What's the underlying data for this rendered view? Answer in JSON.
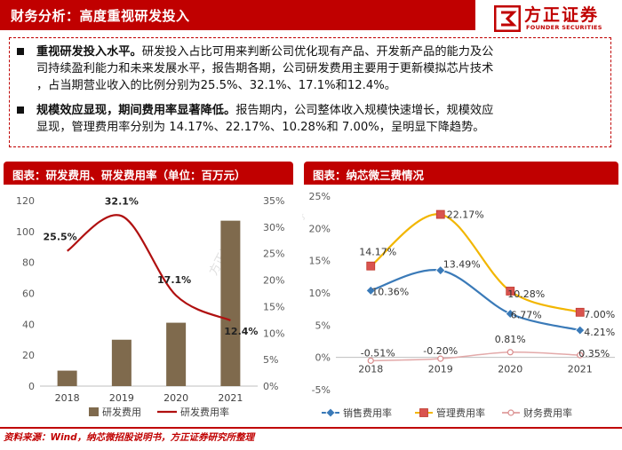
{
  "header": {
    "title": "财务分析：高度重视研发投入",
    "logo_name": "方正证券",
    "logo_sub": "FOUNDER SECURITIES",
    "brand_color": "#c00000"
  },
  "bullets": [
    {
      "bold": "重视研发投入水平。",
      "lines": [
        "研发投入占比可用来判断公司优化现有产品、开发新产品的能力及公",
        "司持续盈利能力和未来发展水平，报告期各期，公司研发费用主要用于更新模拟芯片技术",
        "，占当期营业收入的比例分别为25.5%、32.1%、17.1%和12.4%。"
      ]
    },
    {
      "bold": "规模效应显现，期间费用率显著降低。",
      "lines": [
        "报告期内，公司整体收入规模快速增长，规模效应",
        "显现，管理费用率分别为 14.17%、22.17%、10.28%和 7.00%，呈明显下降趋势。"
      ]
    }
  ],
  "footer": {
    "source": "资料来源：Wind，纳芯微招股说明书，方正证券研究所整理"
  },
  "chart_data": [
    {
      "panel_title": "图表：研发费用、研发费用率（单位：百万元）",
      "type": "bar",
      "categories": [
        "2018",
        "2019",
        "2020",
        "2021"
      ],
      "series": [
        {
          "name": "研发费用",
          "axis": "left",
          "type": "bar",
          "color": "#7f6a4d",
          "values": [
            10,
            30,
            41,
            107
          ]
        },
        {
          "name": "研发费用率",
          "axis": "right",
          "type": "line",
          "color": "#b01010",
          "values": [
            25.5,
            32.1,
            17.1,
            12.4
          ],
          "labels": [
            "25.5%",
            "32.1%",
            "17.1%",
            "12.4%"
          ]
        }
      ],
      "y_left": {
        "min": 0,
        "max": 120,
        "ticks": [
          "0",
          "20",
          "40",
          "60",
          "80",
          "100",
          "120"
        ]
      },
      "y_right": {
        "min": 0,
        "max": 35,
        "ticks": [
          "0%",
          "5%",
          "10%",
          "15%",
          "20%",
          "25%",
          "30%",
          "35%"
        ]
      },
      "watermark": "方正证券"
    },
    {
      "panel_title": "图表：纳芯微三费情况",
      "type": "line",
      "categories": [
        "2018",
        "2019",
        "2020",
        "2021"
      ],
      "series": [
        {
          "name": "销售费用率",
          "color": "#3a7ab8",
          "marker": "diamond",
          "values": [
            10.36,
            13.49,
            6.77,
            4.21
          ],
          "labels": [
            "10.36%",
            "13.49%",
            "6.77%",
            "4.21%"
          ]
        },
        {
          "name": "管理费用率",
          "color": "#f2b600",
          "marker": "square",
          "values": [
            14.17,
            22.17,
            10.28,
            7.0
          ],
          "labels": [
            "14.17%",
            "22.17%",
            "10.28%",
            "7.00%"
          ]
        },
        {
          "name": "财务费用率",
          "color": "#e3a9a9",
          "marker": "circle",
          "values": [
            -0.51,
            -0.2,
            0.81,
            0.35
          ],
          "labels": [
            "-0.51%",
            "-0.20%",
            "0.81%",
            "0.35%"
          ]
        }
      ],
      "y": {
        "min": -5,
        "max": 25,
        "ticks": [
          "-5%",
          "0%",
          "5%",
          "10%",
          "15%",
          "20%",
          "25%"
        ]
      },
      "watermark": "方正证券"
    }
  ]
}
